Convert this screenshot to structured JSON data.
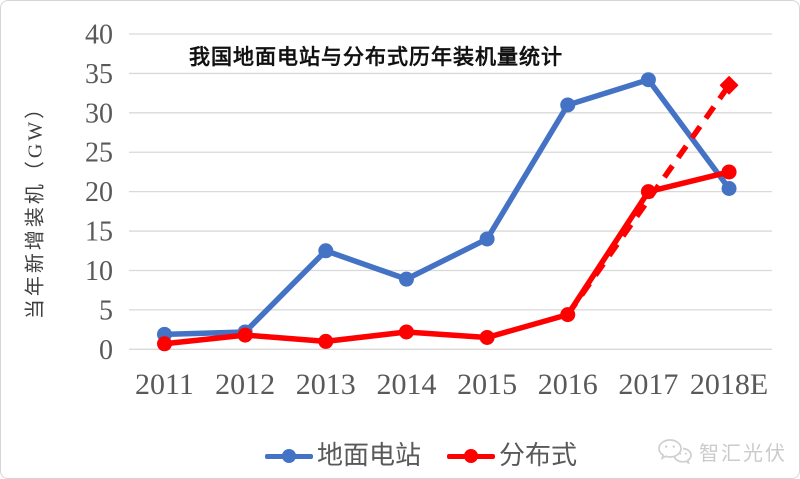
{
  "page": {
    "background": "#ffffff",
    "border_color": "#d6d6d6"
  },
  "colors": {
    "gridline": "#d9d9d9",
    "tick_text": "#595959",
    "title_text": "#111111",
    "ylabel_text": "#3f3f3f",
    "watermark": "#cbcbcb"
  },
  "chart_data": {
    "type": "line",
    "title": "我国地面电站与分布式历年装机量统计",
    "xlabel": "",
    "ylabel": "当年新增装机（GW）",
    "categories": [
      "2011",
      "2012",
      "2013",
      "2014",
      "2015",
      "2016",
      "2017",
      "2018E"
    ],
    "ylim": [
      0,
      40
    ],
    "yticks": [
      0,
      5,
      10,
      15,
      20,
      25,
      30,
      35,
      40
    ],
    "grid": true,
    "legend_position": "bottom-center",
    "series": [
      {
        "key": "ground-stations",
        "name": "地面电站",
        "color": "#4472C4",
        "style": "solid",
        "marker": "circle",
        "values": [
          1.9,
          2.2,
          12.5,
          8.9,
          14.0,
          31.0,
          34.2,
          20.4
        ]
      },
      {
        "key": "distributed",
        "name": "分布式",
        "color": "#FF0000",
        "style": "solid",
        "marker": "circle",
        "values": [
          0.7,
          1.8,
          1.0,
          2.2,
          1.5,
          4.4,
          20.0,
          22.5
        ]
      }
    ],
    "projection": {
      "key": "distributed-projection",
      "series": "分布式",
      "color": "#FF0000",
      "style": "dashed",
      "from": {
        "category": "2016",
        "value": 4.4
      },
      "to": {
        "category": "2018E",
        "value": 33.5
      },
      "end_marker": "diamond"
    }
  },
  "watermark": {
    "icon": "wechat-icon",
    "text": "智汇光伏"
  }
}
